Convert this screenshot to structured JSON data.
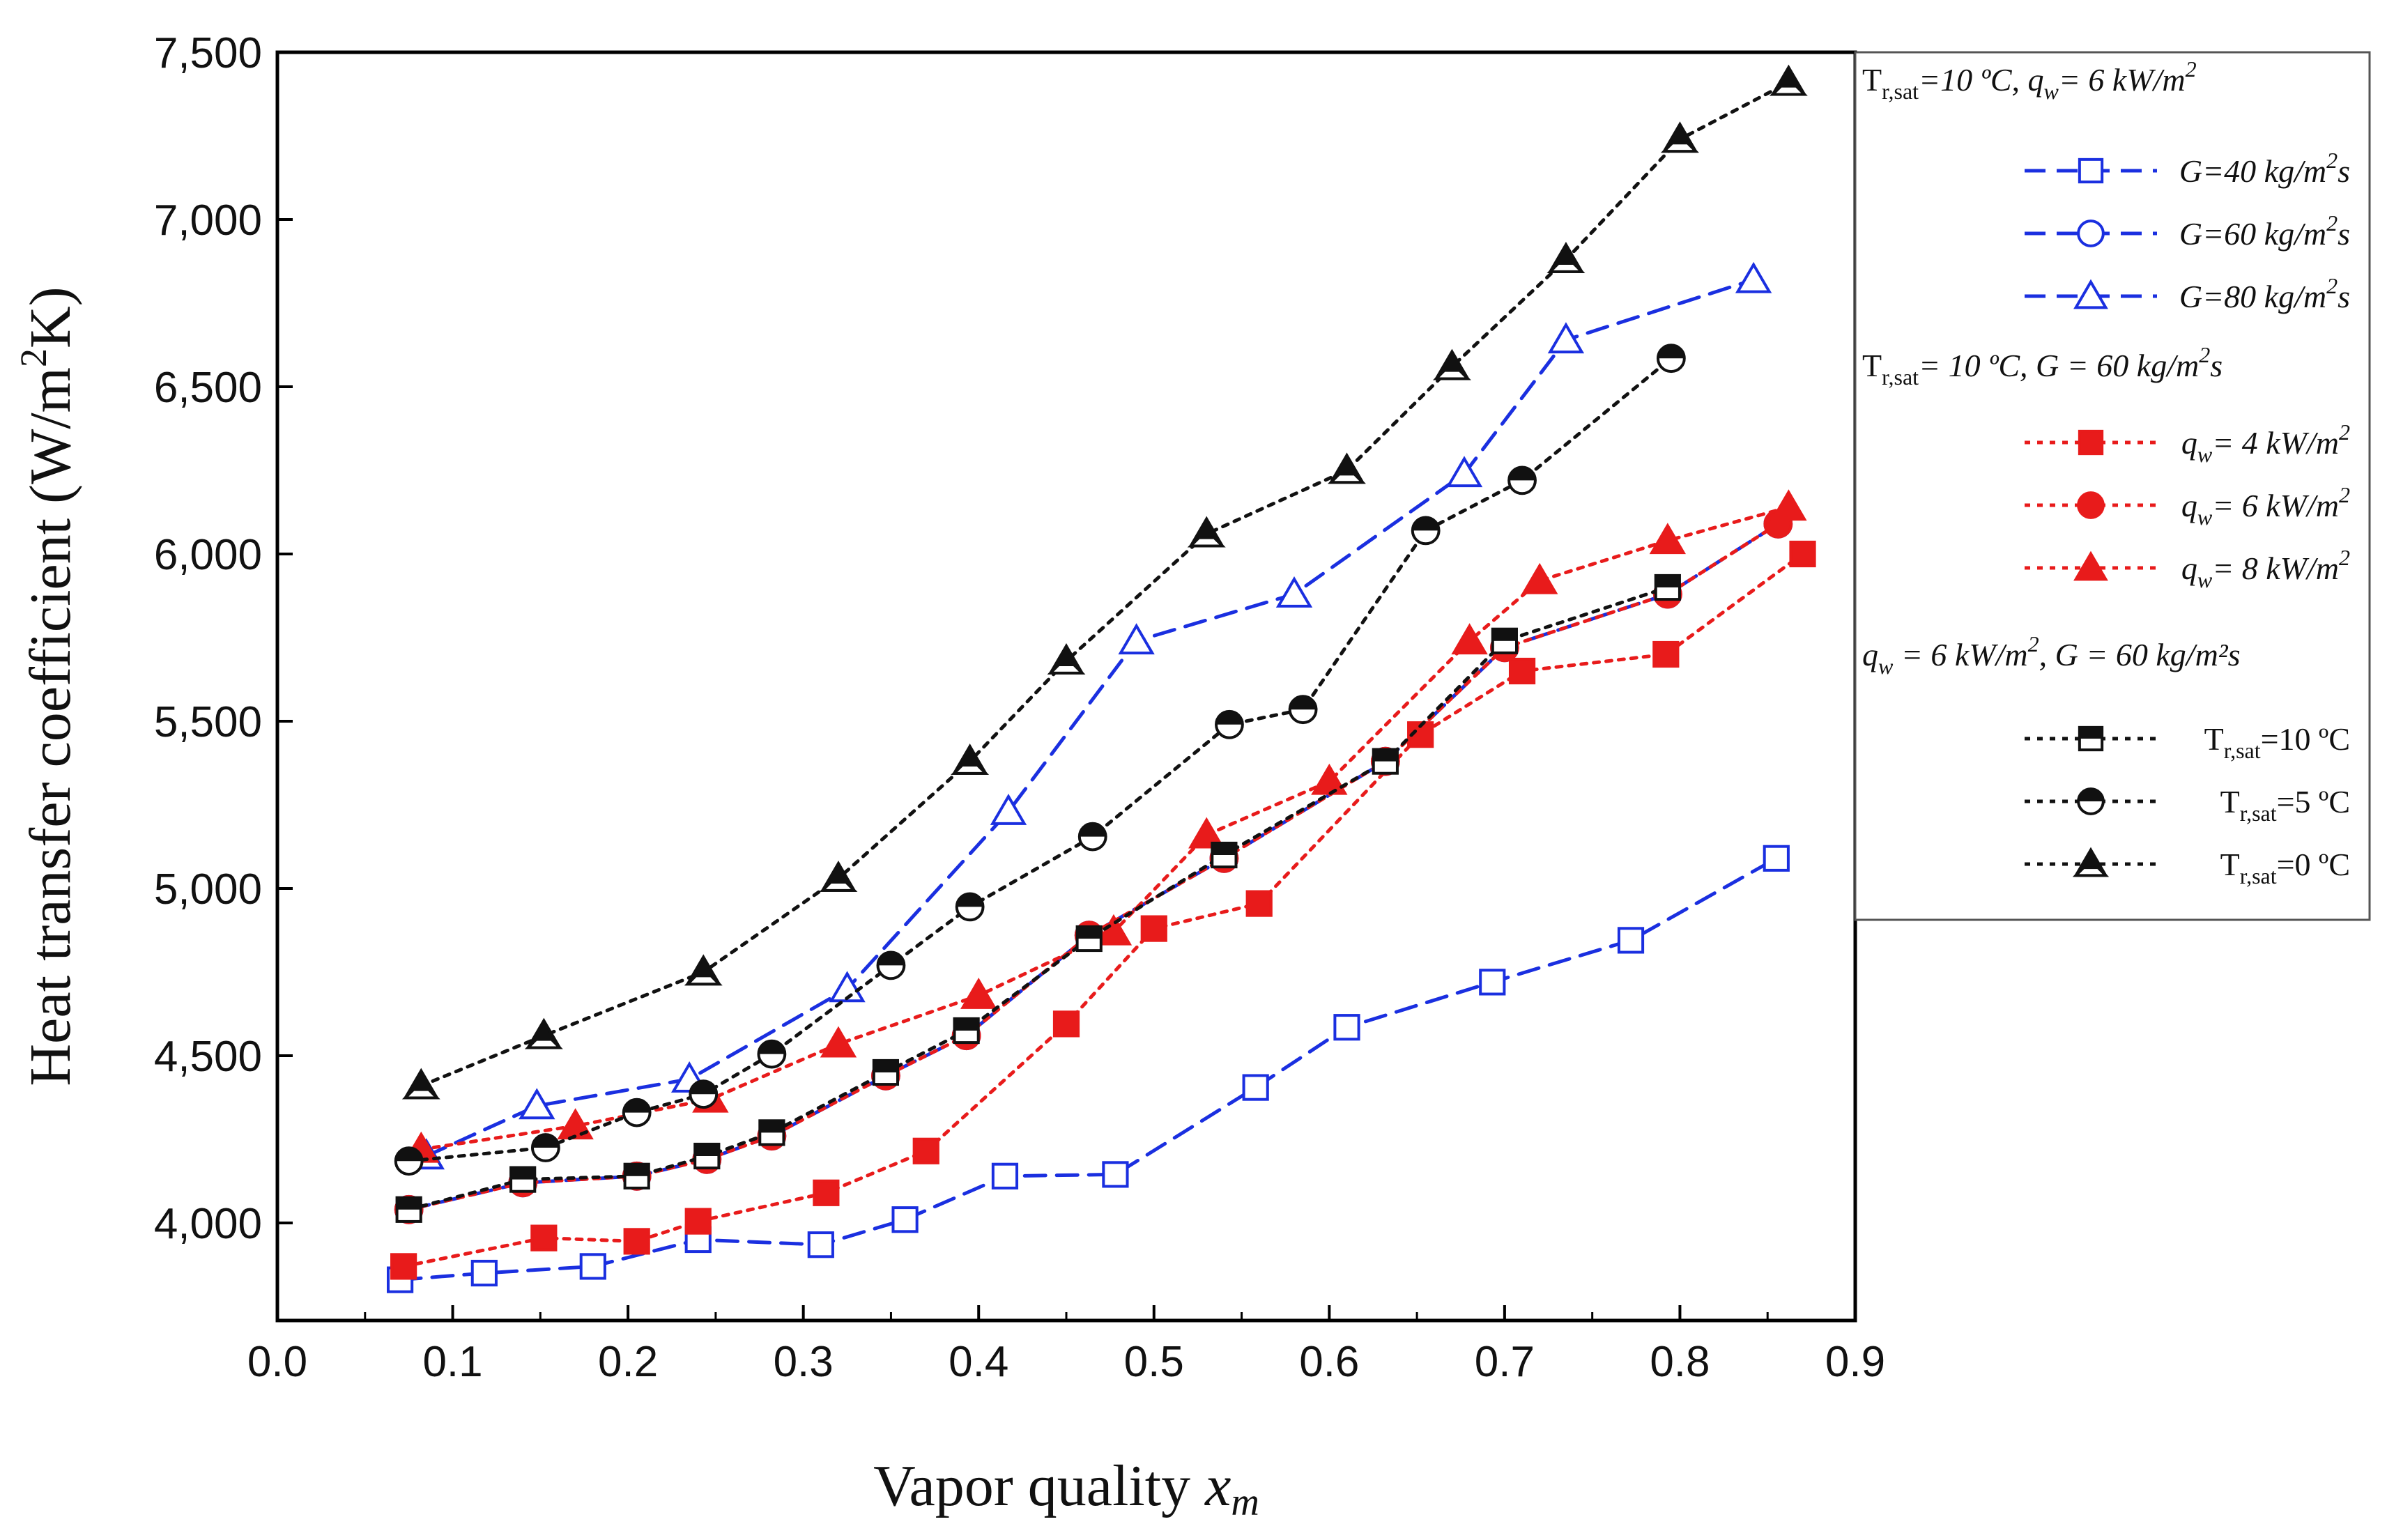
{
  "chart_data": {
    "type": "line",
    "title": "",
    "xlabel": "Vapor quality",
    "xlabel_var": "x",
    "xlabel_sub": "m",
    "ylabel_pre": "Heat transfer coefficient (W/m",
    "ylabel_sup": "2",
    "ylabel_post": "K)",
    "xlim": [
      0.0,
      0.9
    ],
    "ylim": [
      3700,
      7500
    ],
    "xticks": [
      0.0,
      0.1,
      0.2,
      0.3,
      0.4,
      0.5,
      0.6,
      0.7,
      0.8,
      0.9
    ],
    "xtick_labels": [
      "0.0",
      "0.1",
      "0.2",
      "0.3",
      "0.4",
      "0.5",
      "0.6",
      "0.7",
      "0.8",
      "0.9"
    ],
    "yticks": [
      4000,
      4500,
      5000,
      5500,
      6000,
      6500,
      7000,
      7500
    ],
    "ytick_labels": [
      "4,000",
      "4,500",
      "5,000",
      "5,500",
      "6,000",
      "6,500",
      "7,000",
      "7,500"
    ],
    "legend_position": "outside-right",
    "groups": [
      {
        "t1": "T",
        "t1sub": "r,sat",
        "t2": "=10 ºC, q",
        "t2q": true,
        "t3": "= 6 kW/m",
        "t3sup": "2",
        "t4": "",
        "italic": true
      },
      {
        "t1": "T",
        "t1sub": "r,sat",
        "t2": "= 10 ºC, G = 60 kg/m",
        "t2q": false,
        "t3": "",
        "t3sup": "2",
        "t4": "s",
        "italic": true
      },
      {
        "t1": "",
        "t1sub": "",
        "t2": "q",
        "t2q": true,
        "t3": " = 6 kW/m",
        "t3sup": "2",
        "t4": ", G = 60 kg/m²s",
        "italic": true
      }
    ],
    "series": [
      {
        "name": "G=40 kg/m2s",
        "label": "G=40 kg/m",
        "label_sup": "2",
        "label_end": "s",
        "label_kind": "G",
        "group": 0,
        "color": "#1a2fe0",
        "line": "dash",
        "marker": "square-open",
        "x": [
          0.07,
          0.118,
          0.18,
          0.24,
          0.31,
          0.358,
          0.415,
          0.478,
          0.558,
          0.61,
          0.693,
          0.772,
          0.855
        ],
        "y": [
          3830,
          3850,
          3870,
          3950,
          3935,
          4010,
          4140,
          4145,
          4405,
          4585,
          4720,
          4845,
          5090
        ]
      },
      {
        "name": "G=60 kg/m2s",
        "label": "G=60 kg/m",
        "label_sup": "2",
        "label_end": "s",
        "label_kind": "G",
        "group": 0,
        "color": "#1a2fe0",
        "line": "dash",
        "marker": "circle-open",
        "x": [
          0.075,
          0.14,
          0.205,
          0.245,
          0.282,
          0.347,
          0.393,
          0.463,
          0.54,
          0.632,
          0.7,
          0.793,
          0.856
        ],
        "y": [
          4040,
          4120,
          4140,
          4190,
          4260,
          4440,
          4560,
          4860,
          5090,
          5380,
          5720,
          5880,
          6090
        ]
      },
      {
        "name": "G=80 kg/m2s",
        "label": "G=80 kg/m",
        "label_sup": "2",
        "label_end": "s",
        "label_kind": "G",
        "group": 0,
        "color": "#1a2fe0",
        "line": "dash",
        "marker": "triangle-open",
        "x": [
          0.085,
          0.148,
          0.235,
          0.325,
          0.417,
          0.49,
          0.58,
          0.677,
          0.735,
          0.842
        ],
        "y": [
          4200,
          4350,
          4430,
          4700,
          5230,
          5740,
          5880,
          6240,
          6640,
          6820
        ]
      },
      {
        "name": "qw=4 kW/m2",
        "label": "= 4 kW/m",
        "label_sup": "2",
        "label_end": "",
        "label_kind": "q",
        "group": 1,
        "color": "#e81b1b",
        "line": "dot",
        "marker": "square-filled",
        "x": [
          0.072,
          0.152,
          0.205,
          0.24,
          0.313,
          0.37,
          0.45,
          0.5,
          0.56,
          0.652,
          0.71,
          0.792,
          0.87
        ],
        "y": [
          3870,
          3955,
          3945,
          4005,
          4090,
          4215,
          4595,
          4880,
          4955,
          5460,
          5650,
          5700,
          6000
        ]
      },
      {
        "name": "qw=6 kW/m2",
        "label": "= 6 kW/m",
        "label_sup": "2",
        "label_end": "",
        "label_kind": "q",
        "group": 1,
        "color": "#e81b1b",
        "line": "dot",
        "marker": "circle-filled",
        "x": [
          0.075,
          0.14,
          0.205,
          0.245,
          0.282,
          0.347,
          0.393,
          0.463,
          0.54,
          0.632,
          0.7,
          0.793,
          0.856
        ],
        "y": [
          4040,
          4120,
          4140,
          4190,
          4260,
          4440,
          4560,
          4860,
          5090,
          5380,
          5720,
          5880,
          6090
        ]
      },
      {
        "name": "qw=8 kW/m2",
        "label": "= 8 kW/m",
        "label_sup": "2",
        "label_end": "",
        "label_kind": "q",
        "group": 1,
        "color": "#e81b1b",
        "line": "dot",
        "marker": "triangle-filled",
        "x": [
          0.082,
          0.17,
          0.247,
          0.32,
          0.4,
          0.477,
          0.53,
          0.6,
          0.68,
          0.72,
          0.793,
          0.862
        ],
        "y": [
          4220,
          4290,
          4370,
          4535,
          4680,
          4870,
          5160,
          5320,
          5740,
          5920,
          6040,
          6140
        ]
      },
      {
        "name": "Tr,sat=10 ºC",
        "label": "=10 ºC",
        "label_sup": "",
        "label_end": "",
        "label_kind": "T",
        "group": 2,
        "color": "#111111",
        "line": "dot",
        "marker": "square-half",
        "x": [
          0.075,
          0.14,
          0.205,
          0.245,
          0.282,
          0.347,
          0.393,
          0.463,
          0.54,
          0.632,
          0.7,
          0.793
        ],
        "y": [
          4040,
          4130,
          4140,
          4200,
          4270,
          4450,
          4575,
          4850,
          5100,
          5380,
          5740,
          5900
        ]
      },
      {
        "name": "Tr,sat=5 ºC",
        "label": "=5 ºC",
        "label_sup": "",
        "label_end": "",
        "label_kind": "T",
        "group": 2,
        "color": "#111111",
        "line": "dot",
        "marker": "circle-half",
        "x": [
          0.075,
          0.153,
          0.205,
          0.243,
          0.282,
          0.35,
          0.395,
          0.465,
          0.543,
          0.585,
          0.655,
          0.71,
          0.795
        ],
        "y": [
          4185,
          4225,
          4330,
          4385,
          4505,
          4770,
          4945,
          5155,
          5490,
          5535,
          6070,
          6220,
          6585
        ]
      },
      {
        "name": "Tr,sat=0 ºC",
        "label": "=0 ºC",
        "label_sup": "",
        "label_end": "",
        "label_kind": "T",
        "group": 2,
        "color": "#111111",
        "line": "dot",
        "marker": "triangle-half",
        "x": [
          0.082,
          0.152,
          0.243,
          0.32,
          0.395,
          0.45,
          0.53,
          0.61,
          0.67,
          0.735,
          0.8,
          0.862
        ],
        "y": [
          4410,
          4560,
          4750,
          5030,
          5380,
          5680,
          6060,
          6250,
          6560,
          6880,
          7240,
          7410
        ]
      }
    ]
  }
}
